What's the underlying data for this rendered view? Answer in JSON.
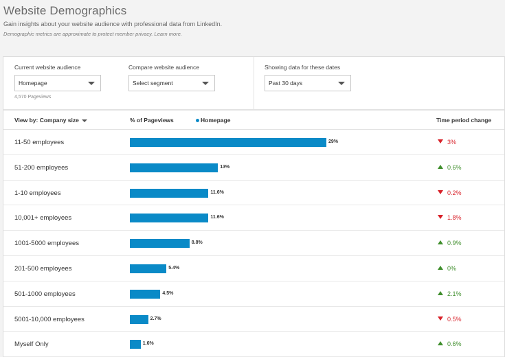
{
  "header": {
    "title": "Website Demographics",
    "subtitle": "Gain insights about your website audience with professional data from LinkedIn.",
    "note": "Demographic metrics are approximate to protect member privacy. Learn more."
  },
  "filters": {
    "current": {
      "label": "Current website audience",
      "value": "Homepage",
      "pageviews": "4,570 Pageviews"
    },
    "compare": {
      "label": "Compare website audience",
      "value": "Select segment"
    },
    "dates": {
      "label": "Showing data for these dates",
      "value": "Past 30 days"
    }
  },
  "table": {
    "viewby_label": "View by:",
    "viewby_value": "Company size",
    "pct_header": "% of Pageviews",
    "legend_label": "Homepage",
    "change_header": "Time period change"
  },
  "colors": {
    "bar": "#0a8ac7",
    "down": "#d8222a",
    "up": "#3f8e2c"
  },
  "chart_data": {
    "type": "bar",
    "categories": [
      "11-50 employees",
      "51-200 employees",
      "1-10 employees",
      "10,001+ employees",
      "1001-5000 employees",
      "201-500 employees",
      "501-1000 employees",
      "5001-10,000 employees",
      "Myself Only"
    ],
    "series": [
      {
        "name": "Homepage",
        "values": [
          29,
          13,
          11.6,
          11.6,
          8.8,
          5.4,
          4.5,
          2.7,
          1.6
        ]
      }
    ],
    "value_labels": [
      "29%",
      "13%",
      "11.6%",
      "11.6%",
      "8.8%",
      "5.4%",
      "4.5%",
      "2.7%",
      "1.6%"
    ],
    "changes": [
      {
        "text": "3%",
        "direction": "down"
      },
      {
        "text": "0.6%",
        "direction": "up"
      },
      {
        "text": "0.2%",
        "direction": "down"
      },
      {
        "text": "1.8%",
        "direction": "down"
      },
      {
        "text": "0.9%",
        "direction": "up"
      },
      {
        "text": "0%",
        "direction": "up"
      },
      {
        "text": "2.1%",
        "direction": "up"
      },
      {
        "text": "0.5%",
        "direction": "down"
      },
      {
        "text": "0.6%",
        "direction": "up"
      }
    ]
  }
}
